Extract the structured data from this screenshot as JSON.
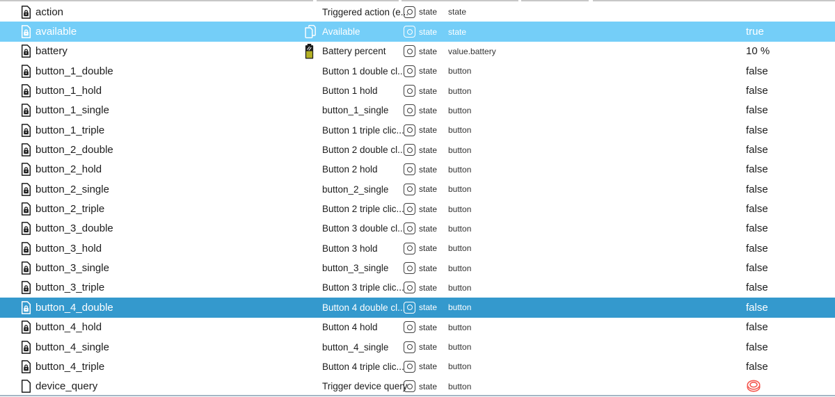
{
  "colors": {
    "row_hover_bg": "#74CEF8",
    "row_selected_bg": "#3499CD",
    "highlight_text": "#FFFFFF",
    "battery_yellow": "#B4B125",
    "push_button_red": "#F4564E"
  },
  "rows": [
    {
      "id": "action",
      "name": "Triggered action (e...",
      "type_label": "state",
      "role": "state",
      "value": "",
      "id_icon": "doc-lock-icon",
      "name_icon": null,
      "value_icon": null,
      "highlight": null
    },
    {
      "id": "available",
      "name": "Available",
      "type_label": "state",
      "role": "state",
      "value": "true",
      "id_icon": "doc-lock-icon",
      "name_icon": "copy-icon",
      "value_icon": null,
      "highlight": "hover"
    },
    {
      "id": "battery",
      "name": "Battery percent",
      "type_label": "state",
      "role": "value.battery",
      "value": "10 %",
      "id_icon": "doc-lock-icon",
      "name_icon": "battery-icon",
      "value_icon": null,
      "highlight": null
    },
    {
      "id": "button_1_double",
      "name": "Button 1 double cl...",
      "type_label": "state",
      "role": "button",
      "value": "false",
      "id_icon": "doc-lock-icon",
      "name_icon": null,
      "value_icon": null,
      "highlight": null
    },
    {
      "id": "button_1_hold",
      "name": "Button 1 hold",
      "type_label": "state",
      "role": "button",
      "value": "false",
      "id_icon": "doc-lock-icon",
      "name_icon": null,
      "value_icon": null,
      "highlight": null
    },
    {
      "id": "button_1_single",
      "name": "button_1_single",
      "type_label": "state",
      "role": "button",
      "value": "false",
      "id_icon": "doc-lock-icon",
      "name_icon": null,
      "value_icon": null,
      "highlight": null
    },
    {
      "id": "button_1_triple",
      "name": "Button 1 triple clic...",
      "type_label": "state",
      "role": "button",
      "value": "false",
      "id_icon": "doc-lock-icon",
      "name_icon": null,
      "value_icon": null,
      "highlight": null
    },
    {
      "id": "button_2_double",
      "name": "Button 2 double cl...",
      "type_label": "state",
      "role": "button",
      "value": "false",
      "id_icon": "doc-lock-icon",
      "name_icon": null,
      "value_icon": null,
      "highlight": null
    },
    {
      "id": "button_2_hold",
      "name": "Button 2 hold",
      "type_label": "state",
      "role": "button",
      "value": "false",
      "id_icon": "doc-lock-icon",
      "name_icon": null,
      "value_icon": null,
      "highlight": null
    },
    {
      "id": "button_2_single",
      "name": "button_2_single",
      "type_label": "state",
      "role": "button",
      "value": "false",
      "id_icon": "doc-lock-icon",
      "name_icon": null,
      "value_icon": null,
      "highlight": null
    },
    {
      "id": "button_2_triple",
      "name": "Button 2 triple clic...",
      "type_label": "state",
      "role": "button",
      "value": "false",
      "id_icon": "doc-lock-icon",
      "name_icon": null,
      "value_icon": null,
      "highlight": null
    },
    {
      "id": "button_3_double",
      "name": "Button 3 double cl...",
      "type_label": "state",
      "role": "button",
      "value": "false",
      "id_icon": "doc-lock-icon",
      "name_icon": null,
      "value_icon": null,
      "highlight": null
    },
    {
      "id": "button_3_hold",
      "name": "Button 3 hold",
      "type_label": "state",
      "role": "button",
      "value": "false",
      "id_icon": "doc-lock-icon",
      "name_icon": null,
      "value_icon": null,
      "highlight": null
    },
    {
      "id": "button_3_single",
      "name": "button_3_single",
      "type_label": "state",
      "role": "button",
      "value": "false",
      "id_icon": "doc-lock-icon",
      "name_icon": null,
      "value_icon": null,
      "highlight": null
    },
    {
      "id": "button_3_triple",
      "name": "Button 3 triple clic...",
      "type_label": "state",
      "role": "button",
      "value": "false",
      "id_icon": "doc-lock-icon",
      "name_icon": null,
      "value_icon": null,
      "highlight": null
    },
    {
      "id": "button_4_double",
      "name": "Button 4 double cl...",
      "type_label": "state",
      "role": "button",
      "value": "false",
      "id_icon": "doc-lock-icon",
      "name_icon": null,
      "value_icon": null,
      "highlight": "selected"
    },
    {
      "id": "button_4_hold",
      "name": "Button 4 hold",
      "type_label": "state",
      "role": "button",
      "value": "false",
      "id_icon": "doc-lock-icon",
      "name_icon": null,
      "value_icon": null,
      "highlight": null
    },
    {
      "id": "button_4_single",
      "name": "button_4_single",
      "type_label": "state",
      "role": "button",
      "value": "false",
      "id_icon": "doc-lock-icon",
      "name_icon": null,
      "value_icon": null,
      "highlight": null
    },
    {
      "id": "button_4_triple",
      "name": "Button 4 triple clic...",
      "type_label": "state",
      "role": "button",
      "value": "false",
      "id_icon": "doc-lock-icon",
      "name_icon": null,
      "value_icon": null,
      "highlight": null
    },
    {
      "id": "device_query",
      "name": "Trigger device query",
      "type_label": "state",
      "role": "button",
      "value": "",
      "id_icon": "doc-icon",
      "name_icon": null,
      "value_icon": "push-button-icon",
      "highlight": null
    }
  ]
}
